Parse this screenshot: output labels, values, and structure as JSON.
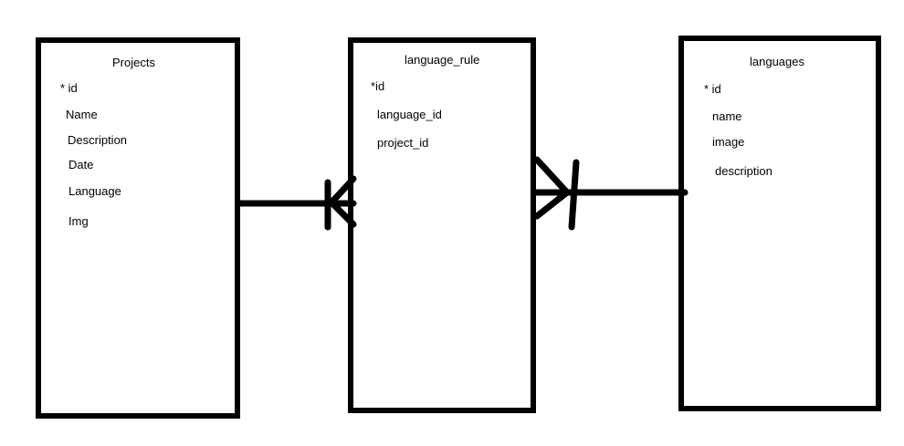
{
  "entities": {
    "projects": {
      "title": "Projects",
      "fields": [
        "* id",
        "Name",
        "Description",
        "Date",
        "Language",
        "Img"
      ]
    },
    "language_rule": {
      "title": "language_rule",
      "fields": [
        "*id",
        "language_id",
        "project_id"
      ]
    },
    "languages": {
      "title": "languages",
      "fields": [
        "* id",
        "name",
        "image",
        "description"
      ]
    }
  },
  "relationships": [
    {
      "from": "projects",
      "to": "language_rule",
      "from_end": "none",
      "to_end": "one-or-many"
    },
    {
      "from": "language_rule",
      "to": "languages",
      "from_end": "many",
      "to_end": "one"
    }
  ],
  "colors": {
    "stroke": "#000000",
    "background": "#ffffff"
  }
}
